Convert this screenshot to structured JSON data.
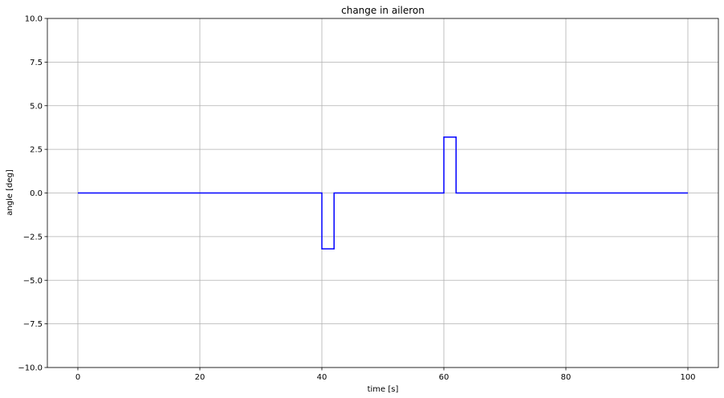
{
  "chart_data": {
    "type": "line",
    "title": "change in aileron",
    "xlabel": "time [s]",
    "ylabel": "angle [deg]",
    "xlim": [
      -5,
      105
    ],
    "ylim": [
      -10.0,
      10.0
    ],
    "xticks": [
      0,
      20,
      40,
      60,
      80,
      100
    ],
    "yticks": [
      -10.0,
      -7.5,
      -5.0,
      -2.5,
      0.0,
      2.5,
      5.0,
      7.5,
      10.0
    ],
    "xtick_labels": [
      "0",
      "20",
      "40",
      "60",
      "80",
      "100"
    ],
    "ytick_labels": [
      "−10.0",
      "−7.5",
      "−5.0",
      "−2.5",
      "0.0",
      "2.5",
      "5.0",
      "7.5",
      "10.0"
    ],
    "grid": true,
    "series": [
      {
        "color": "#0000ff",
        "x": [
          0,
          40,
          40,
          42,
          42,
          60,
          60,
          62,
          62,
          100
        ],
        "y": [
          0,
          0,
          -3.2,
          -3.2,
          0,
          0,
          3.2,
          3.2,
          0,
          0
        ]
      }
    ]
  }
}
